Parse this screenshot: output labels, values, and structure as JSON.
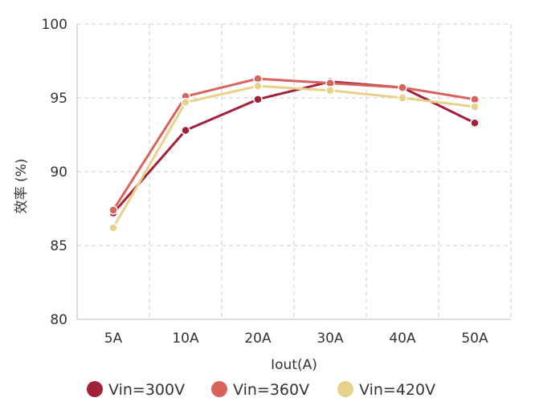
{
  "chart_data": {
    "type": "line",
    "xlabel": "Iout(A)",
    "ylabel": "效率 (%)",
    "categories": [
      "5A",
      "10A",
      "20A",
      "30A",
      "40A",
      "50A"
    ],
    "ylim": [
      80,
      100
    ],
    "yticks": [
      80,
      85,
      90,
      95,
      100
    ],
    "grid": true,
    "legend_position": "bottom",
    "series": [
      {
        "name": "Vin=300V",
        "color": "#a3203a",
        "values": [
          87.2,
          92.8,
          94.9,
          96.1,
          95.7,
          93.3
        ]
      },
      {
        "name": "Vin=360V",
        "color": "#d9625c",
        "values": [
          87.4,
          95.1,
          96.3,
          96.0,
          95.7,
          94.9
        ]
      },
      {
        "name": "Vin=420V",
        "color": "#e8d18b",
        "values": [
          86.2,
          94.7,
          95.8,
          95.5,
          95.0,
          94.4
        ]
      }
    ]
  }
}
